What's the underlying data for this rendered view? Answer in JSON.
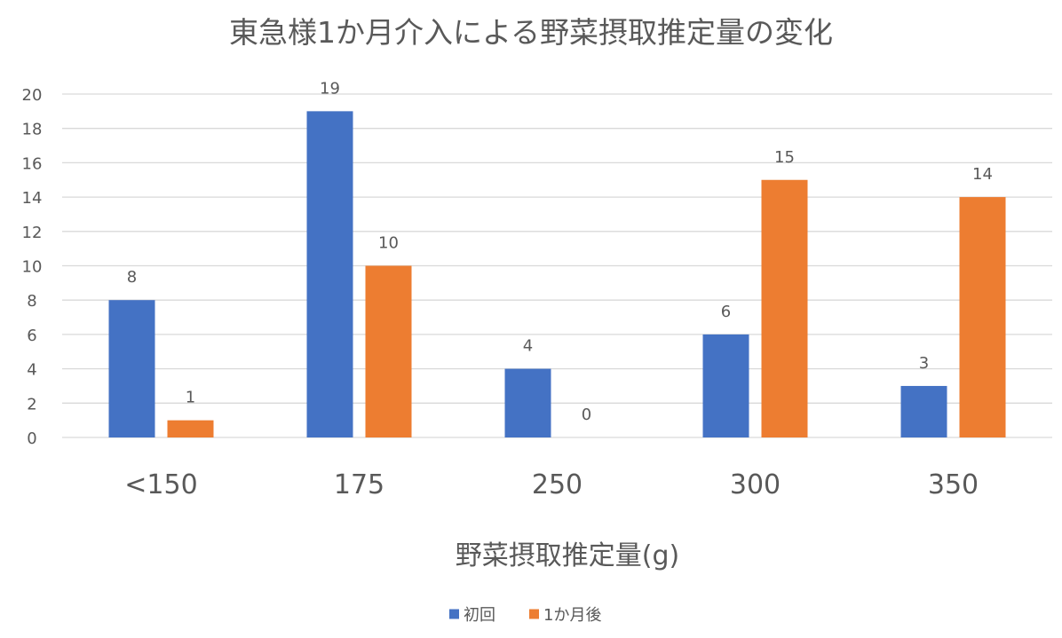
{
  "chart_data": {
    "type": "bar",
    "title": "東急様1か月介入による野菜摂取推定量の変化",
    "xlabel": "野菜摂取推定量(g)",
    "ylabel": "",
    "ylim": [
      0,
      20
    ],
    "yticks": [
      0,
      2,
      4,
      6,
      8,
      10,
      12,
      14,
      16,
      18,
      20
    ],
    "categories": [
      "<150",
      "175",
      "250",
      "300",
      "350"
    ],
    "series": [
      {
        "name": "初回",
        "color": "#4472C4",
        "values": [
          8,
          19,
          4,
          6,
          3
        ]
      },
      {
        "name": "1か月後",
        "color": "#ED7D31",
        "values": [
          1,
          10,
          0,
          15,
          14
        ]
      }
    ],
    "grid": true,
    "legend": "bottom",
    "data_labels": true,
    "gridline_color": "#D9D9D9",
    "text_color": "#595959"
  }
}
